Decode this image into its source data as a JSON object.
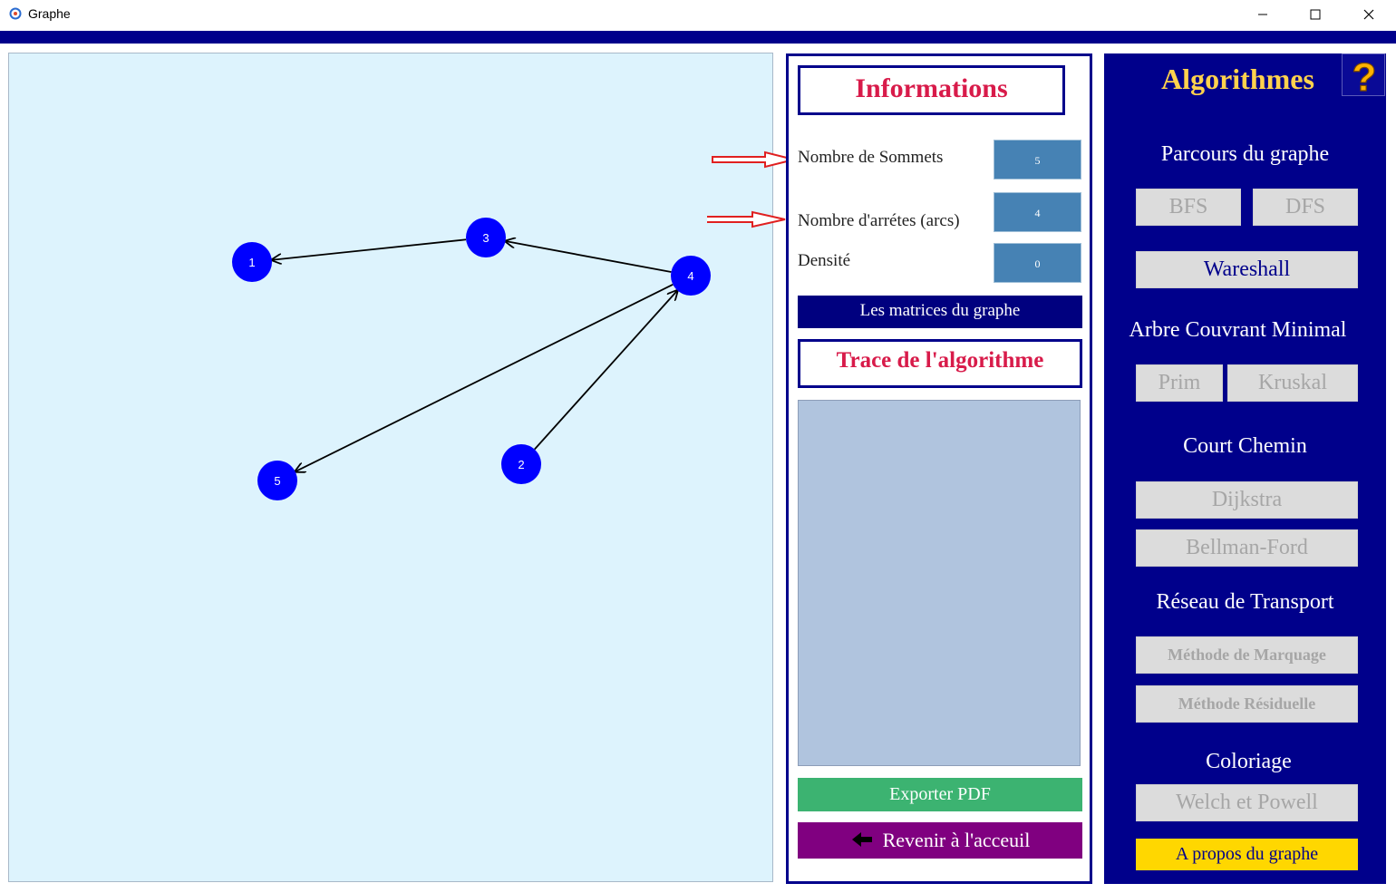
{
  "window": {
    "title": "Graphe",
    "icon": "graph-app-icon"
  },
  "graph": {
    "nodes": [
      {
        "id": "1",
        "label": "1"
      },
      {
        "id": "2",
        "label": "2"
      },
      {
        "id": "3",
        "label": "3"
      },
      {
        "id": "4",
        "label": "4"
      },
      {
        "id": "5",
        "label": "5"
      }
    ],
    "edges": [
      {
        "from": "3",
        "to": "1"
      },
      {
        "from": "4",
        "to": "3"
      },
      {
        "from": "4",
        "to": "5"
      },
      {
        "from": "2",
        "to": "4"
      }
    ],
    "node_color": "#0000ff",
    "canvas_color": "#ddf3fd"
  },
  "info": {
    "title": "Informations",
    "sommets_label": "Nombre de Sommets",
    "sommets_value": "5",
    "arretes_label": "Nombre d'arrétes (arcs)",
    "arretes_value": "4",
    "densite_label": "Densité",
    "densite_value": "0",
    "matrices_button": "Les matrices du graphe",
    "trace_title": "Trace de l'algorithme",
    "export_button": "Exporter PDF",
    "back_button": "Revenir à l'acceuil"
  },
  "algorithms": {
    "title": "Algorithmes",
    "help_icon": "question-mark-icon",
    "parcours": {
      "label": "Parcours du graphe",
      "bfs": "BFS",
      "dfs": "DFS"
    },
    "wareshall": "Wareshall",
    "arbre": {
      "label": "Arbre Couvrant Minimal",
      "prim": "Prim",
      "kruskal": "Kruskal"
    },
    "chemin": {
      "label": "Court Chemin",
      "dijkstra": "Dijkstra",
      "bellman": "Bellman-Ford"
    },
    "reseau": {
      "label": "Réseau de Transport",
      "marquage": "Méthode de Marquage",
      "residuelle": "Méthode Résiduelle"
    },
    "coloriage": {
      "label": "Coloriage",
      "welch": "Welch et Powell"
    },
    "apropos": "A propos du graphe"
  },
  "colors": {
    "panel_navy": "#00008b",
    "title_red": "#d81b4a",
    "value_box": "#4682b4",
    "export_green": "#3cb371",
    "back_purple": "#800080",
    "apropos_yellow": "#ffd700"
  }
}
